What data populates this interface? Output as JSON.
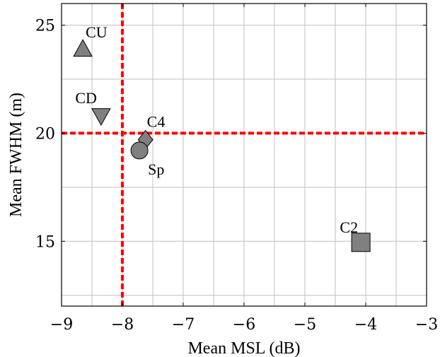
{
  "chart_data": {
    "type": "scatter",
    "xlabel": "Mean MSL (dB)",
    "ylabel": "Mean FWHM (m)",
    "xlim": [
      -9,
      -3
    ],
    "ylim": [
      12,
      26
    ],
    "xticks": [
      -9,
      -8,
      -7,
      -6,
      -5,
      -4,
      -3
    ],
    "yticks": [
      15,
      20,
      25
    ],
    "x_tick_labels": [
      "−9",
      "−8",
      "−7",
      "−6",
      "−5",
      "−4",
      "−3"
    ],
    "y_tick_labels": [
      "15",
      "20",
      "25"
    ],
    "grid": true,
    "points": [
      {
        "label": "CU",
        "x": -8.65,
        "y": 23.9,
        "marker": "triangle-up"
      },
      {
        "label": "CD",
        "x": -8.35,
        "y": 20.8,
        "marker": "triangle-down"
      },
      {
        "label": "C4",
        "x": -7.62,
        "y": 19.7,
        "marker": "diamond"
      },
      {
        "label": "Sp",
        "x": -7.72,
        "y": 19.2,
        "marker": "circle"
      },
      {
        "label": "C2",
        "x": -4.08,
        "y": 14.95,
        "marker": "square"
      }
    ],
    "reference_lines": [
      {
        "orientation": "vertical",
        "value": -8,
        "color": "#ff0000",
        "style": "dashed"
      },
      {
        "orientation": "horizontal",
        "value": 20,
        "color": "#ff0000",
        "style": "dashed"
      }
    ],
    "colors": {
      "marker_fill": "#808080",
      "marker_stroke": "#000000",
      "grid": "#c0c0c0",
      "reference": "#ff0000"
    }
  }
}
